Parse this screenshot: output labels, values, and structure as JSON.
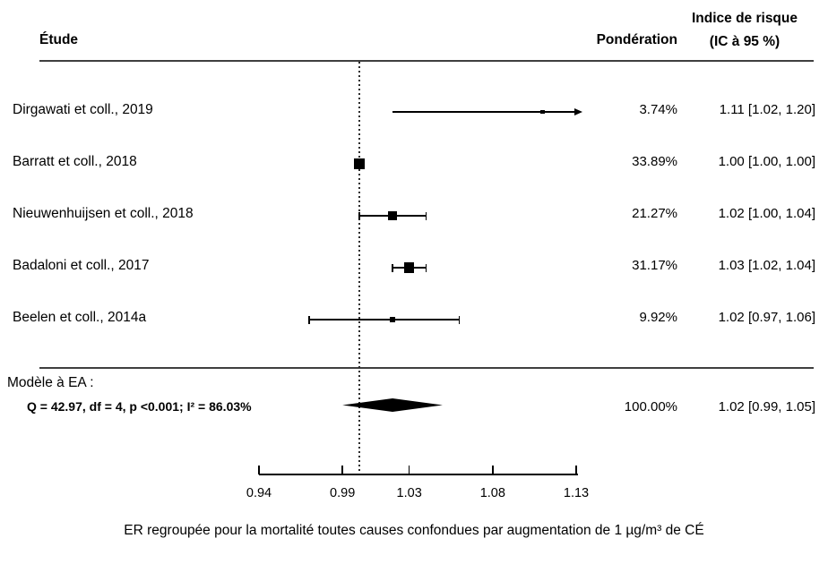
{
  "header": {
    "study_col": "Étude",
    "weight_col": "Pondération",
    "effect_col_line1": "Indice de risque",
    "effect_col_line2": "(IC à 95 %)"
  },
  "chart_data": {
    "type": "forest",
    "axis": {
      "min": 0.94,
      "max": 1.13,
      "ticks": [
        0.94,
        0.99,
        1.03,
        1.08,
        1.13
      ],
      "ref_line": 1.0
    },
    "studies": [
      {
        "label": "Dirgawati et coll., 2019",
        "weight_pct": "3.74%",
        "estimate_text": "1.11 [1.02, 1.20]",
        "est": 1.11,
        "lo": 1.02,
        "hi": 1.2,
        "caps": false,
        "arrow_hi": true
      },
      {
        "label": "Barratt et coll., 2018",
        "weight_pct": "33.89%",
        "estimate_text": "1.00 [1.00, 1.00]",
        "est": 1.0,
        "lo": 1.0,
        "hi": 1.0,
        "caps": false,
        "arrow_hi": false
      },
      {
        "label": "Nieuwenhuijsen et coll., 2018",
        "weight_pct": "21.27%",
        "estimate_text": "1.02 [1.00, 1.04]",
        "est": 1.02,
        "lo": 1.0,
        "hi": 1.04,
        "caps": true,
        "arrow_hi": false
      },
      {
        "label": "Badaloni et coll., 2017",
        "weight_pct": "31.17%",
        "estimate_text": "1.03 [1.02, 1.04]",
        "est": 1.03,
        "lo": 1.02,
        "hi": 1.04,
        "caps": true,
        "arrow_hi": false
      },
      {
        "label": "Beelen et coll., 2014a",
        "weight_pct": "9.92%",
        "estimate_text": "1.02 [0.97, 1.06]",
        "est": 1.02,
        "lo": 0.97,
        "hi": 1.06,
        "caps": true,
        "arrow_hi": false
      }
    ],
    "summary": {
      "label_line1": "Modèle à EA :",
      "label_line2": "Q = 42.97, df = 4, p  <0.001; I² = 86.03%",
      "weight_pct": "100.00%",
      "estimate_text": "1.02 [0.99, 1.05]",
      "est": 1.02,
      "lo": 0.99,
      "hi": 1.05
    },
    "caption": "ER regroupée pour la mortalité toutes causes confondues par augmentation de 1 µg/m³ de CÉ"
  }
}
